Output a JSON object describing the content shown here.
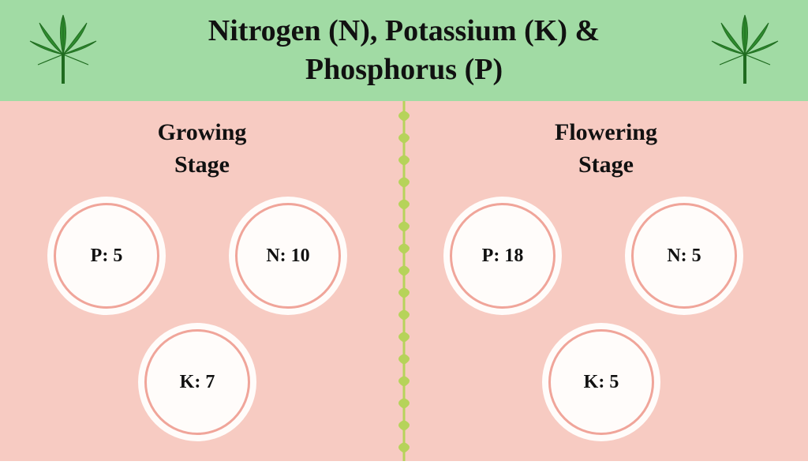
{
  "header": {
    "title_line1": "Nitrogen (N), Potassium (K) &",
    "title_line2": "Phosphorus (P)",
    "bg_color": "#a1dba4",
    "title_color": "#111111",
    "title_fontsize": 38,
    "leaf_color": "#2e8b2e",
    "leaf_dark": "#1f6b1f"
  },
  "body": {
    "bg_color": "#f7cbc2",
    "stage_title_color": "#111111",
    "stage_title_fontsize": 30,
    "circle_fill": "#fffcfa",
    "circle_ring": "#f0a59a",
    "circle_ring_width": 3,
    "value_color": "#111111",
    "value_fontsize": 24,
    "vine_color": "#b6d35a"
  },
  "left": {
    "title_line1": "Growing",
    "title_line2": "Stage",
    "p_label": "P: 5",
    "n_label": "N: 10",
    "k_label": "K: 7"
  },
  "right": {
    "title_line1": "Flowering",
    "title_line2": "Stage",
    "p_label": "P: 18",
    "n_label": "N: 5",
    "k_label": "K: 5"
  }
}
